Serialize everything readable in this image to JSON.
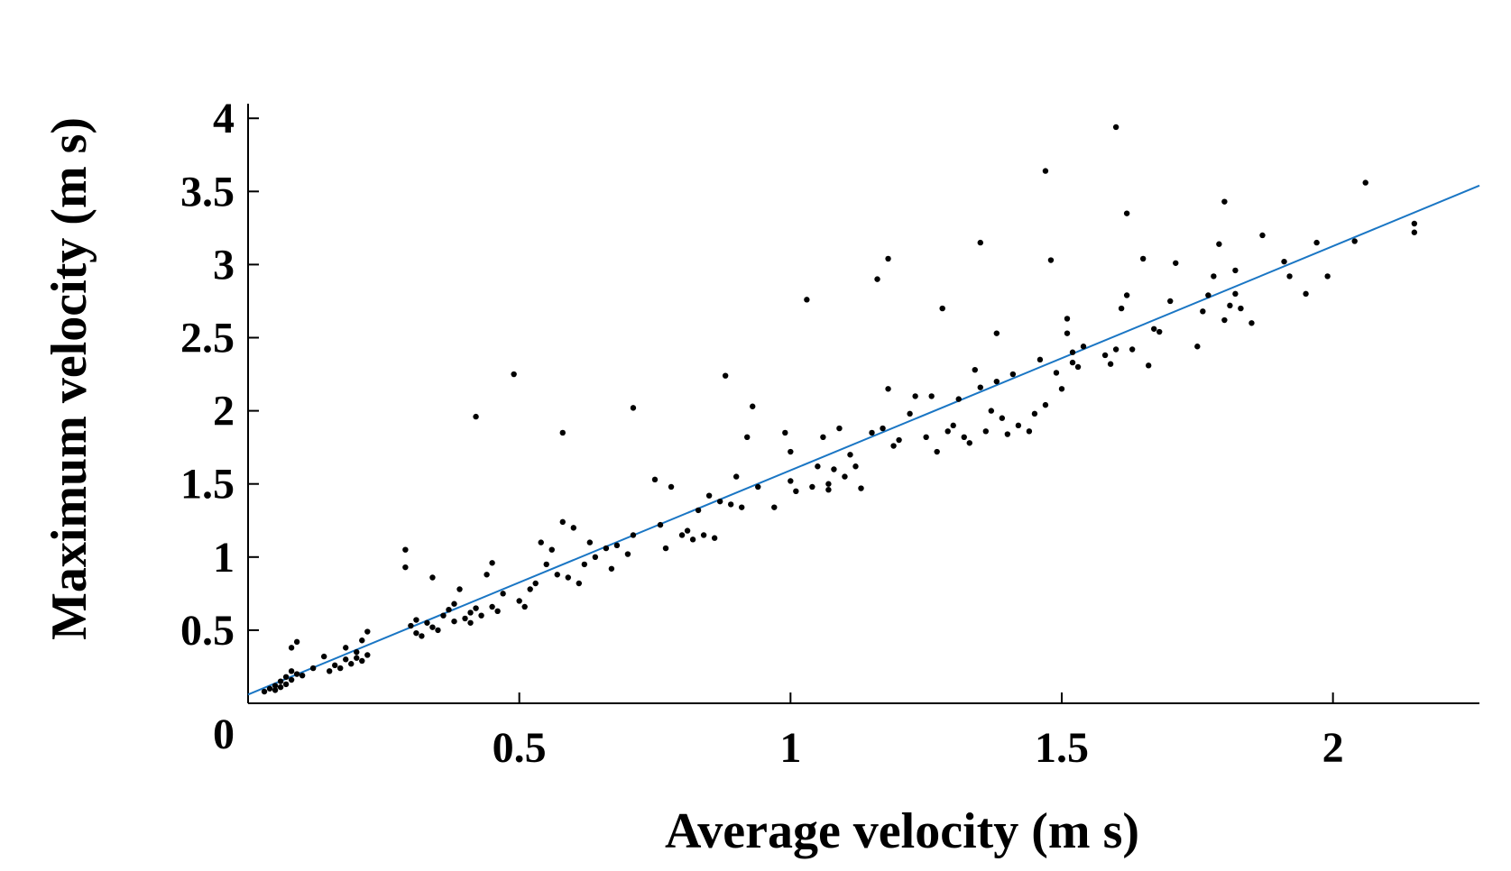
{
  "chart_data": {
    "type": "scatter",
    "title": "",
    "xlabel": "Average velocity (m s)",
    "ylabel": "Maximum velocity (m s)",
    "xlim": [
      0,
      2.27
    ],
    "ylim": [
      0,
      4.1
    ],
    "xticks": [
      0.5,
      1,
      1.5,
      2
    ],
    "xtick_labels": [
      "0.5",
      "1",
      "1.5",
      "2"
    ],
    "yticks": [
      0.5,
      1,
      1.5,
      2,
      2.5,
      3,
      3.5,
      4
    ],
    "ytick_labels": [
      "0.5",
      "1",
      "1.5",
      "2",
      "2.5",
      "3",
      "3.5",
      "4"
    ],
    "origin_label": "0",
    "grid": false,
    "series": [
      {
        "name": "measurements",
        "marker_color": "#000000",
        "points": [
          [
            0.03,
            0.08
          ],
          [
            0.04,
            0.1
          ],
          [
            0.05,
            0.12
          ],
          [
            0.05,
            0.09
          ],
          [
            0.06,
            0.15
          ],
          [
            0.06,
            0.11
          ],
          [
            0.07,
            0.18
          ],
          [
            0.07,
            0.13
          ],
          [
            0.08,
            0.22
          ],
          [
            0.08,
            0.16
          ],
          [
            0.09,
            0.2
          ],
          [
            0.08,
            0.38
          ],
          [
            0.09,
            0.42
          ],
          [
            0.1,
            0.19
          ],
          [
            0.12,
            0.24
          ],
          [
            0.14,
            0.32
          ],
          [
            0.15,
            0.22
          ],
          [
            0.16,
            0.26
          ],
          [
            0.17,
            0.24
          ],
          [
            0.18,
            0.3
          ],
          [
            0.18,
            0.38
          ],
          [
            0.19,
            0.27
          ],
          [
            0.2,
            0.35
          ],
          [
            0.2,
            0.31
          ],
          [
            0.21,
            0.43
          ],
          [
            0.21,
            0.29
          ],
          [
            0.22,
            0.49
          ],
          [
            0.22,
            0.33
          ],
          [
            0.3,
            0.53
          ],
          [
            0.29,
            1.05
          ],
          [
            0.29,
            0.93
          ],
          [
            0.31,
            0.57
          ],
          [
            0.31,
            0.48
          ],
          [
            0.32,
            0.46
          ],
          [
            0.33,
            0.55
          ],
          [
            0.34,
            0.86
          ],
          [
            0.34,
            0.52
          ],
          [
            0.35,
            0.5
          ],
          [
            0.36,
            0.6
          ],
          [
            0.37,
            0.64
          ],
          [
            0.38,
            0.68
          ],
          [
            0.38,
            0.56
          ],
          [
            0.39,
            0.78
          ],
          [
            0.4,
            0.58
          ],
          [
            0.41,
            0.55
          ],
          [
            0.41,
            0.62
          ],
          [
            0.42,
            0.65
          ],
          [
            0.43,
            0.6
          ],
          [
            0.44,
            0.88
          ],
          [
            0.45,
            0.96
          ],
          [
            0.45,
            0.66
          ],
          [
            0.46,
            0.63
          ],
          [
            0.47,
            0.75
          ],
          [
            0.42,
            1.96
          ],
          [
            0.49,
            2.25
          ],
          [
            0.5,
            0.7
          ],
          [
            0.51,
            0.66
          ],
          [
            0.52,
            0.78
          ],
          [
            0.53,
            0.82
          ],
          [
            0.54,
            1.1
          ],
          [
            0.55,
            0.95
          ],
          [
            0.56,
            1.05
          ],
          [
            0.57,
            0.88
          ],
          [
            0.58,
            1.24
          ],
          [
            0.58,
            1.85
          ],
          [
            0.59,
            0.86
          ],
          [
            0.6,
            1.2
          ],
          [
            0.61,
            0.82
          ],
          [
            0.62,
            0.95
          ],
          [
            0.63,
            1.1
          ],
          [
            0.64,
            1.0
          ],
          [
            0.66,
            1.06
          ],
          [
            0.67,
            0.92
          ],
          [
            0.68,
            1.08
          ],
          [
            0.7,
            1.02
          ],
          [
            0.71,
            1.15
          ],
          [
            0.71,
            2.02
          ],
          [
            0.75,
            1.53
          ],
          [
            0.76,
            1.22
          ],
          [
            0.77,
            1.06
          ],
          [
            0.78,
            1.48
          ],
          [
            0.8,
            1.15
          ],
          [
            0.81,
            1.18
          ],
          [
            0.82,
            1.12
          ],
          [
            0.83,
            1.32
          ],
          [
            0.84,
            1.15
          ],
          [
            0.85,
            1.42
          ],
          [
            0.86,
            1.13
          ],
          [
            0.87,
            1.38
          ],
          [
            0.88,
            2.24
          ],
          [
            0.89,
            1.36
          ],
          [
            0.9,
            1.55
          ],
          [
            0.91,
            1.34
          ],
          [
            0.92,
            1.82
          ],
          [
            0.93,
            2.03
          ],
          [
            0.94,
            1.48
          ],
          [
            0.97,
            1.34
          ],
          [
            0.99,
            1.85
          ],
          [
            1.0,
            1.72
          ],
          [
            1.0,
            1.52
          ],
          [
            1.01,
            1.45
          ],
          [
            1.03,
            2.76
          ],
          [
            1.04,
            1.48
          ],
          [
            1.05,
            1.62
          ],
          [
            1.06,
            1.82
          ],
          [
            1.07,
            1.5
          ],
          [
            1.07,
            1.46
          ],
          [
            1.08,
            1.6
          ],
          [
            1.09,
            1.88
          ],
          [
            1.1,
            1.55
          ],
          [
            1.11,
            1.7
          ],
          [
            1.12,
            1.62
          ],
          [
            1.13,
            1.47
          ],
          [
            1.15,
            1.85
          ],
          [
            1.16,
            2.9
          ],
          [
            1.17,
            1.88
          ],
          [
            1.18,
            3.04
          ],
          [
            1.18,
            2.15
          ],
          [
            1.19,
            1.76
          ],
          [
            1.2,
            1.8
          ],
          [
            1.22,
            1.98
          ],
          [
            1.23,
            2.1
          ],
          [
            1.25,
            1.82
          ],
          [
            1.26,
            2.1
          ],
          [
            1.27,
            1.72
          ],
          [
            1.28,
            2.7
          ],
          [
            1.29,
            1.86
          ],
          [
            1.3,
            1.9
          ],
          [
            1.31,
            2.08
          ],
          [
            1.32,
            1.82
          ],
          [
            1.33,
            1.78
          ],
          [
            1.34,
            2.28
          ],
          [
            1.35,
            3.15
          ],
          [
            1.35,
            2.16
          ],
          [
            1.36,
            1.86
          ],
          [
            1.37,
            2.0
          ],
          [
            1.38,
            2.53
          ],
          [
            1.38,
            2.2
          ],
          [
            1.39,
            1.95
          ],
          [
            1.4,
            1.84
          ],
          [
            1.41,
            2.25
          ],
          [
            1.42,
            1.9
          ],
          [
            1.44,
            1.86
          ],
          [
            1.45,
            1.98
          ],
          [
            1.46,
            2.35
          ],
          [
            1.47,
            3.64
          ],
          [
            1.47,
            2.04
          ],
          [
            1.48,
            3.03
          ],
          [
            1.49,
            2.26
          ],
          [
            1.5,
            2.15
          ],
          [
            1.51,
            2.63
          ],
          [
            1.51,
            2.53
          ],
          [
            1.52,
            2.4
          ],
          [
            1.52,
            2.33
          ],
          [
            1.53,
            2.3
          ],
          [
            1.54,
            2.44
          ],
          [
            1.58,
            2.38
          ],
          [
            1.59,
            2.32
          ],
          [
            1.6,
            3.94
          ],
          [
            1.6,
            2.42
          ],
          [
            1.61,
            2.7
          ],
          [
            1.62,
            3.35
          ],
          [
            1.62,
            2.79
          ],
          [
            1.63,
            2.42
          ],
          [
            1.65,
            3.04
          ],
          [
            1.66,
            2.31
          ],
          [
            1.67,
            2.56
          ],
          [
            1.68,
            2.54
          ],
          [
            1.7,
            2.75
          ],
          [
            1.71,
            3.01
          ],
          [
            1.75,
            2.44
          ],
          [
            1.76,
            2.68
          ],
          [
            1.77,
            2.79
          ],
          [
            1.78,
            2.92
          ],
          [
            1.79,
            3.14
          ],
          [
            1.8,
            3.43
          ],
          [
            1.8,
            2.62
          ],
          [
            1.81,
            2.72
          ],
          [
            1.82,
            2.8
          ],
          [
            1.82,
            2.96
          ],
          [
            1.83,
            2.7
          ],
          [
            1.85,
            2.6
          ],
          [
            1.87,
            3.2
          ],
          [
            1.91,
            3.02
          ],
          [
            1.92,
            2.92
          ],
          [
            1.95,
            2.8
          ],
          [
            1.97,
            3.15
          ],
          [
            1.99,
            2.92
          ],
          [
            2.04,
            3.16
          ],
          [
            2.06,
            3.56
          ],
          [
            2.15,
            3.28
          ],
          [
            2.15,
            3.22
          ]
        ]
      },
      {
        "name": "linear fit",
        "line_color": "#1a76c4",
        "points": [
          [
            0.0,
            0.06
          ],
          [
            2.27,
            3.54
          ]
        ]
      }
    ]
  }
}
